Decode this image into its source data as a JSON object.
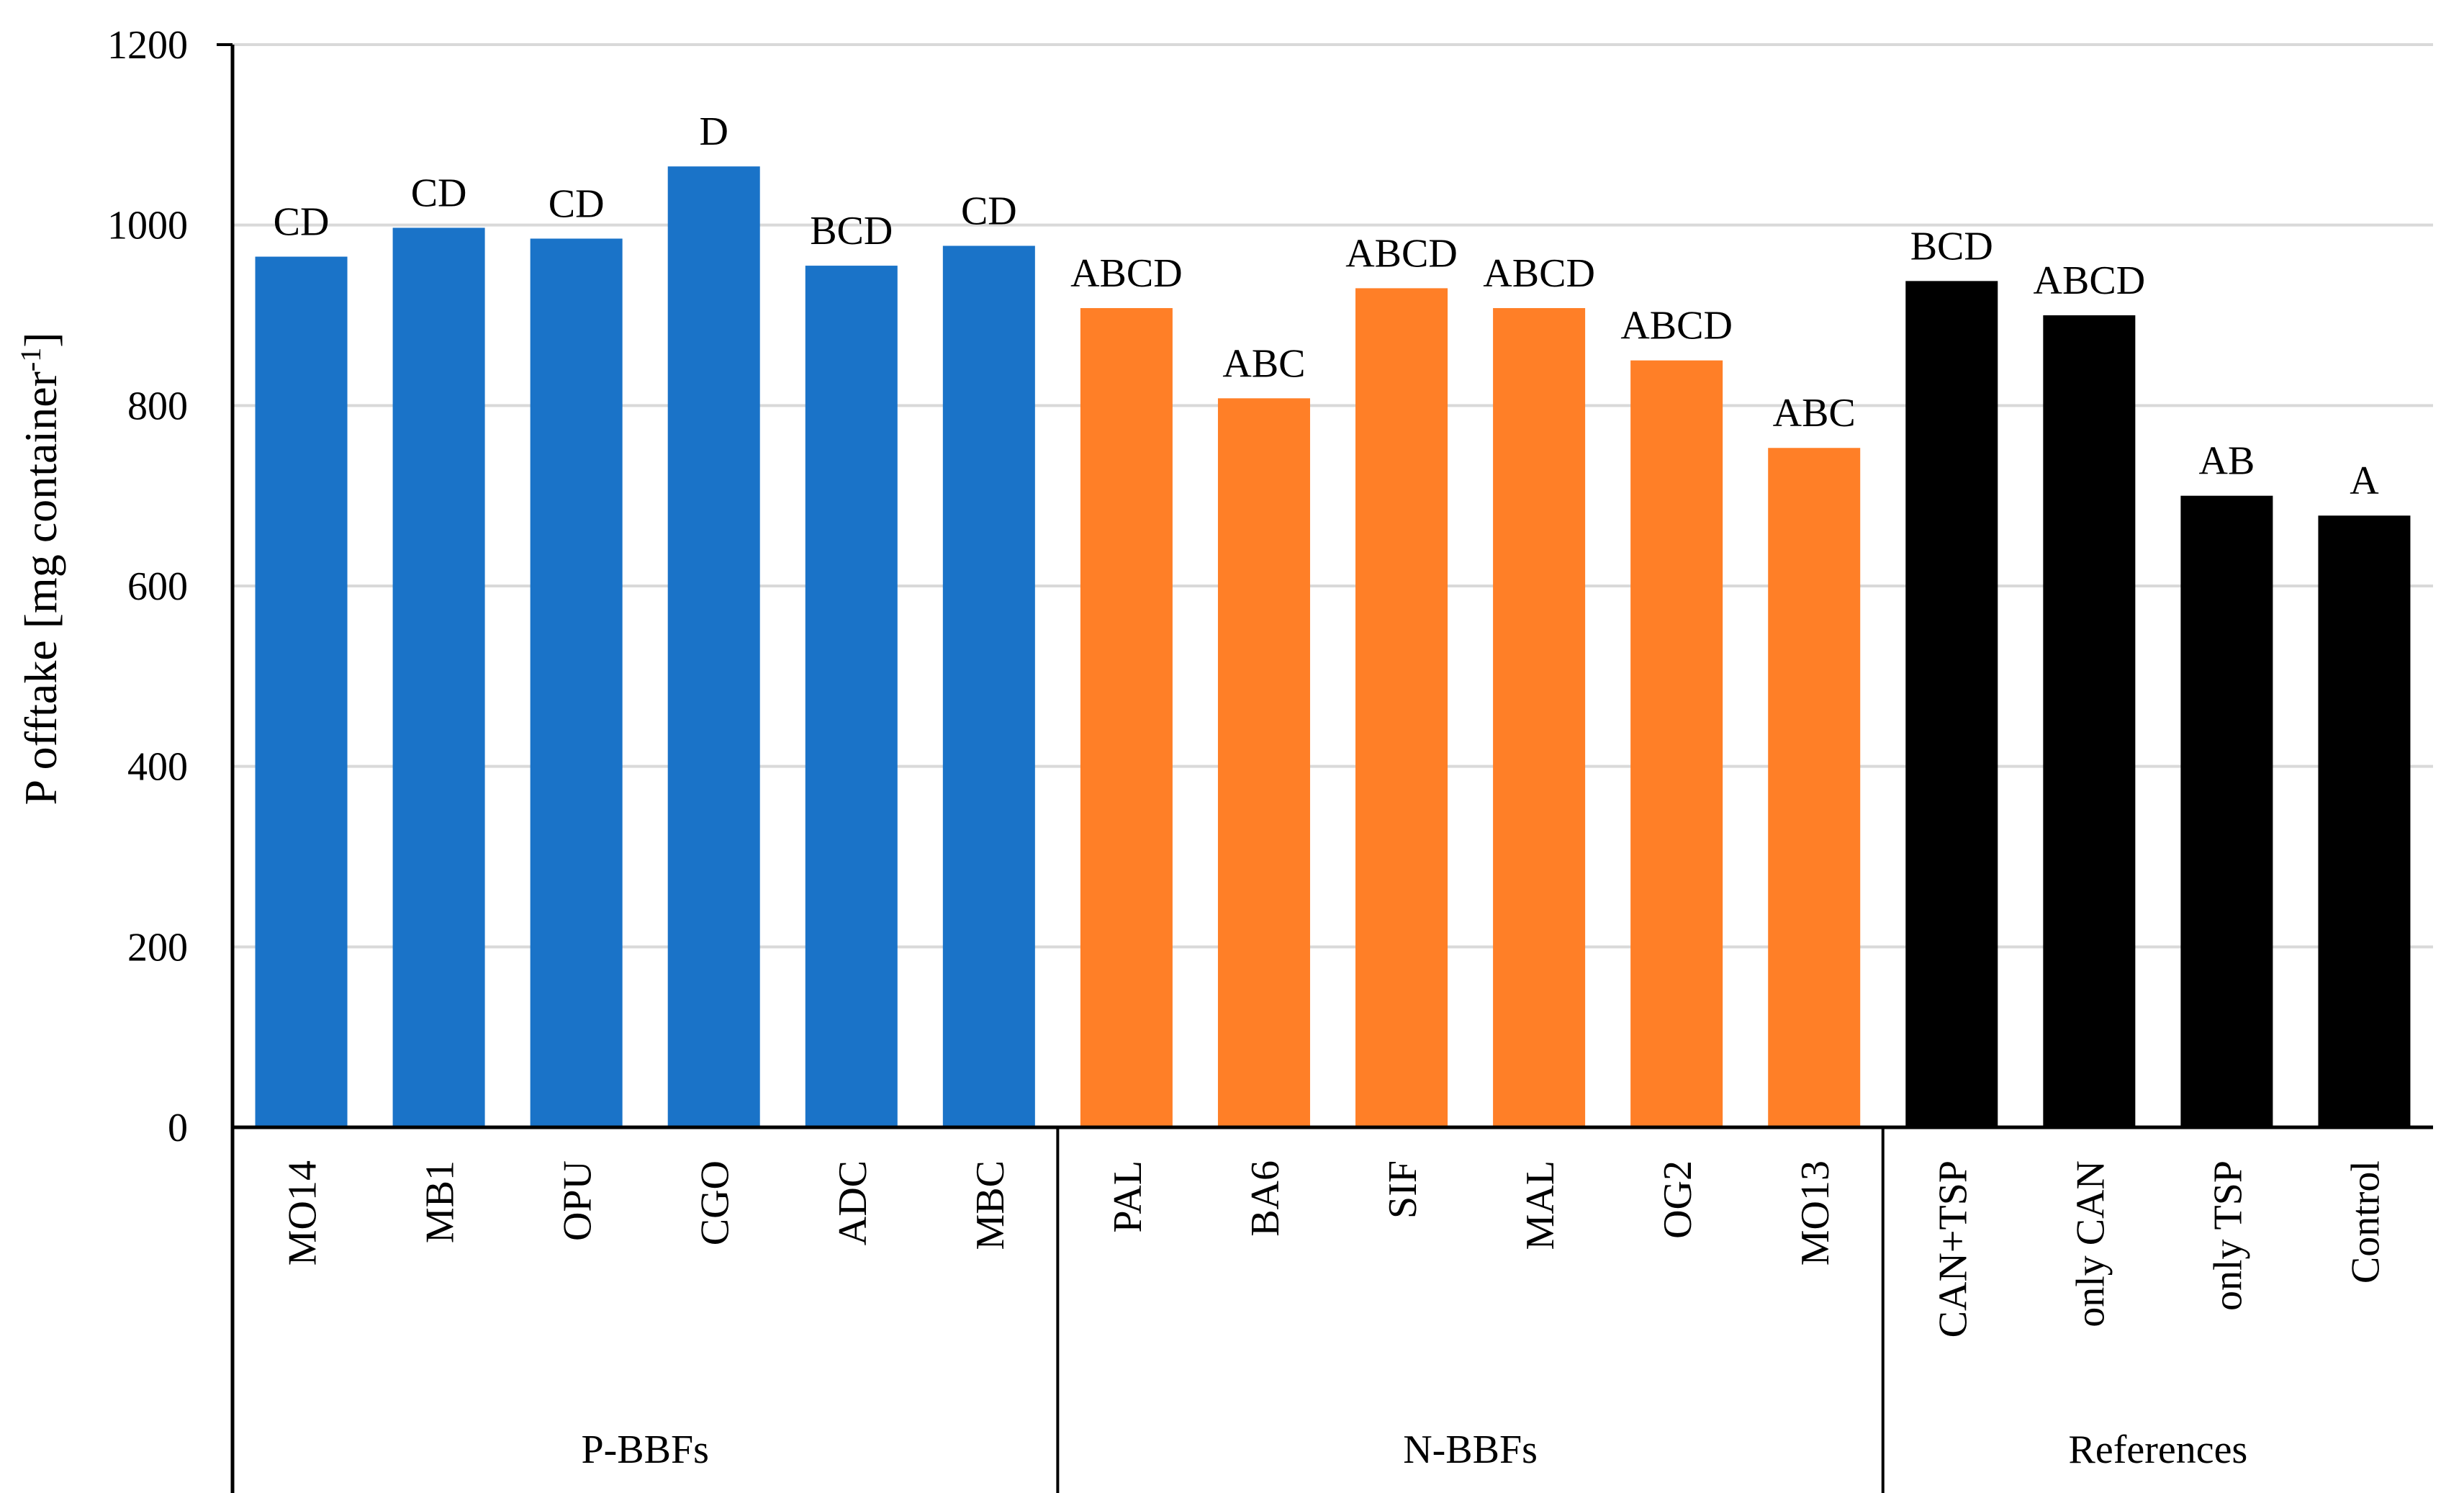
{
  "chart_data": {
    "type": "bar",
    "title": "",
    "xlabel": "",
    "ylabel_main": "P offtake [mg container",
    "ylabel_sup": "-1",
    "ylabel_close": "]",
    "ylim": [
      0,
      1200
    ],
    "yticks": [
      0,
      200,
      400,
      600,
      800,
      1000,
      1200
    ],
    "grid": true,
    "categories": [
      "MO14",
      "MB1",
      "OPU",
      "CGO",
      "ADC",
      "MBC",
      "PAL",
      "BA6",
      "SIF",
      "MAL",
      "OG2",
      "MO13",
      "CAN+TSP",
      "only CAN",
      "only TSP",
      "Control"
    ],
    "values": [
      965,
      997,
      985,
      1065,
      955,
      977,
      908,
      808,
      930,
      908,
      850,
      753,
      938,
      900,
      700,
      678
    ],
    "significance": [
      "CD",
      "CD",
      "CD",
      "D",
      "BCD",
      "CD",
      "ABCD",
      "ABC",
      "ABCD",
      "ABCD",
      "ABCD",
      "ABC",
      "BCD",
      "ABCD",
      "AB",
      "A"
    ],
    "groups": [
      {
        "name": "P-BBFs",
        "count": 6,
        "color": "#1a73c8"
      },
      {
        "name": "N-BBFs",
        "count": 6,
        "color": "#ff7f27"
      },
      {
        "name": "References",
        "count": 4,
        "color": "#000000"
      }
    ]
  }
}
